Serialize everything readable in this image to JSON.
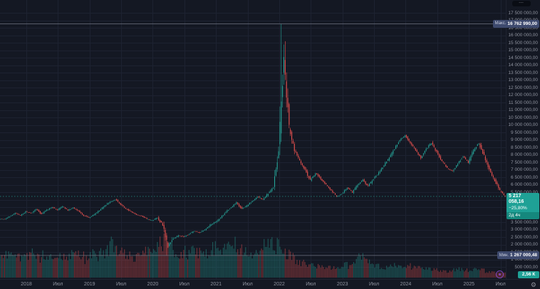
{
  "colors": {
    "background": "#141823",
    "grid": "#1d2231",
    "candle_up": "#26a69a",
    "candle_down": "#ef5350",
    "volume_up": "rgba(38,166,154,0.45)",
    "volume_down": "rgba(239,83,80,0.45)",
    "axis_text": "#9094a0",
    "hl_line": "#6e7280",
    "current_line": "#26a69a",
    "badge_blue": "#3e4a6e",
    "badge_teal": "#1fa196"
  },
  "price_axis": {
    "menu_icon": "⋯",
    "max_badge": {
      "label": "Макс.",
      "value": "16 762 990,00"
    },
    "min_badge": {
      "label": "Мин.",
      "value": "1 267 000,48"
    },
    "current_badge": {
      "price": "5 217 058,16",
      "change_pct": "−25,80%",
      "countdown": "2д 4ч"
    },
    "volume_badge": "2,56 К"
  },
  "time_axis": {
    "gear_icon": "⚙"
  },
  "chart_data": {
    "type": "candlestick+volume",
    "timeframe": "weekly candles rendered, data anchored monthly",
    "price_unit": "RUB, close values below in millions",
    "y_axis": {
      "tick_min": 500000,
      "tick_max": 17500000,
      "step": 500000,
      "label_suffix": ",00"
    },
    "all_time_high": {
      "month": "2022-01",
      "price": 16762990.0
    },
    "all_time_low": {
      "month": "2020-03",
      "price": 1267000.48
    },
    "current_price": 5217058.16,
    "current_change_pct": -25.8,
    "x_ticks": {
      "labels": [
        "2018",
        "Июл",
        "2019",
        "Июл",
        "2020",
        "Июл",
        "2021",
        "Июл",
        "2022",
        "Июл",
        "2023",
        "Июл",
        "2024",
        "Июл",
        "2025",
        "Июл"
      ],
      "month_index": [
        5,
        11,
        17,
        23,
        29,
        35,
        41,
        47,
        53,
        59,
        65,
        71,
        77,
        83,
        89,
        95
      ]
    },
    "months": [
      [
        "2017-08",
        3.7,
        0.45
      ],
      [
        "2017-09",
        3.9,
        0.5
      ],
      [
        "2017-10",
        4.1,
        0.48
      ],
      [
        "2017-11",
        3.95,
        0.5
      ],
      [
        "2017-12",
        4.2,
        0.55
      ],
      [
        "2018-01",
        4.1,
        0.5
      ],
      [
        "2018-02",
        4.35,
        0.6
      ],
      [
        "2018-03",
        4.05,
        0.45
      ],
      [
        "2018-04",
        4.3,
        0.55
      ],
      [
        "2018-05",
        4.5,
        0.5
      ],
      [
        "2018-06",
        4.3,
        0.6
      ],
      [
        "2018-07",
        4.55,
        0.55
      ],
      [
        "2018-08",
        4.3,
        0.5
      ],
      [
        "2018-09",
        4.45,
        0.6
      ],
      [
        "2018-10",
        4.25,
        0.55
      ],
      [
        "2018-11",
        3.95,
        0.5
      ],
      [
        "2018-12",
        3.8,
        0.45
      ],
      [
        "2019-01",
        4.0,
        0.55
      ],
      [
        "2019-02",
        4.3,
        0.5
      ],
      [
        "2019-03",
        4.6,
        0.6
      ],
      [
        "2019-04",
        4.85,
        0.7
      ],
      [
        "2019-05",
        5.0,
        0.8
      ],
      [
        "2019-06",
        4.7,
        0.65
      ],
      [
        "2019-07",
        4.4,
        0.6
      ],
      [
        "2019-08",
        4.2,
        0.55
      ],
      [
        "2019-09",
        4.0,
        0.5
      ],
      [
        "2019-10",
        3.9,
        0.6
      ],
      [
        "2019-11",
        3.7,
        0.65
      ],
      [
        "2019-12",
        3.6,
        0.7
      ],
      [
        "2020-01",
        3.8,
        0.75
      ],
      [
        "2020-02",
        3.3,
        0.85
      ],
      [
        "2020-03",
        1.9,
        1.0
      ],
      [
        "2020-04",
        2.4,
        0.8
      ],
      [
        "2020-05",
        2.6,
        0.6
      ],
      [
        "2020-06",
        2.5,
        0.55
      ],
      [
        "2020-07",
        2.7,
        0.6
      ],
      [
        "2020-08",
        2.9,
        0.65
      ],
      [
        "2020-09",
        2.8,
        0.6
      ],
      [
        "2020-10",
        3.0,
        0.55
      ],
      [
        "2020-11",
        3.3,
        0.6
      ],
      [
        "2020-12",
        3.5,
        0.7
      ],
      [
        "2021-01",
        3.8,
        0.65
      ],
      [
        "2021-02",
        4.2,
        0.7
      ],
      [
        "2021-03",
        4.5,
        0.75
      ],
      [
        "2021-04",
        4.8,
        0.8
      ],
      [
        "2021-05",
        4.4,
        0.7
      ],
      [
        "2021-06",
        4.6,
        0.6
      ],
      [
        "2021-07",
        4.9,
        0.55
      ],
      [
        "2021-08",
        5.2,
        0.65
      ],
      [
        "2021-09",
        5.0,
        0.7
      ],
      [
        "2021-10",
        5.4,
        0.8
      ],
      [
        "2021-11",
        5.8,
        0.9
      ],
      [
        "2021-12",
        8.2,
        0.75
      ],
      [
        "2022-01",
        14.5,
        0.6
      ],
      [
        "2022-02",
        9.8,
        0.55
      ],
      [
        "2022-03",
        8.3,
        0.5
      ],
      [
        "2022-04",
        7.6,
        0.4
      ],
      [
        "2022-05",
        7.0,
        0.35
      ],
      [
        "2022-06",
        6.3,
        0.3
      ],
      [
        "2022-07",
        6.8,
        0.3
      ],
      [
        "2022-08",
        6.4,
        0.28
      ],
      [
        "2022-09",
        6.0,
        0.25
      ],
      [
        "2022-10",
        5.6,
        0.24
      ],
      [
        "2022-11",
        5.2,
        0.22
      ],
      [
        "2022-12",
        5.4,
        0.25
      ],
      [
        "2023-01",
        5.8,
        0.3
      ],
      [
        "2023-02",
        5.5,
        0.28
      ],
      [
        "2023-03",
        6.0,
        0.45
      ],
      [
        "2023-04",
        6.3,
        0.5
      ],
      [
        "2023-05",
        5.9,
        0.4
      ],
      [
        "2023-06",
        6.4,
        0.35
      ],
      [
        "2023-07",
        6.8,
        0.3
      ],
      [
        "2023-08",
        7.3,
        0.28
      ],
      [
        "2023-09",
        7.8,
        0.26
      ],
      [
        "2023-10",
        8.4,
        0.3
      ],
      [
        "2023-11",
        9.0,
        0.32
      ],
      [
        "2023-12",
        9.3,
        0.3
      ],
      [
        "2024-01",
        8.8,
        0.28
      ],
      [
        "2024-02",
        8.3,
        0.25
      ],
      [
        "2024-03",
        7.8,
        0.22
      ],
      [
        "2024-04",
        8.4,
        0.2
      ],
      [
        "2024-05",
        8.8,
        0.22
      ],
      [
        "2024-06",
        8.2,
        0.2
      ],
      [
        "2024-07",
        7.6,
        0.18
      ],
      [
        "2024-08",
        7.1,
        0.16
      ],
      [
        "2024-09",
        6.9,
        0.15
      ],
      [
        "2024-10",
        7.4,
        0.18
      ],
      [
        "2024-11",
        7.9,
        0.2
      ],
      [
        "2024-12",
        7.5,
        0.18
      ],
      [
        "2025-01",
        8.3,
        0.2
      ],
      [
        "2025-02",
        8.8,
        0.22
      ],
      [
        "2025-03",
        7.9,
        0.18
      ],
      [
        "2025-04",
        7.0,
        0.15
      ],
      [
        "2025-05",
        6.3,
        0.13
      ],
      [
        "2025-06",
        5.6,
        0.12
      ],
      [
        "2025-07",
        5.217058,
        0.1
      ]
    ],
    "last_volume": "2,56 К"
  }
}
